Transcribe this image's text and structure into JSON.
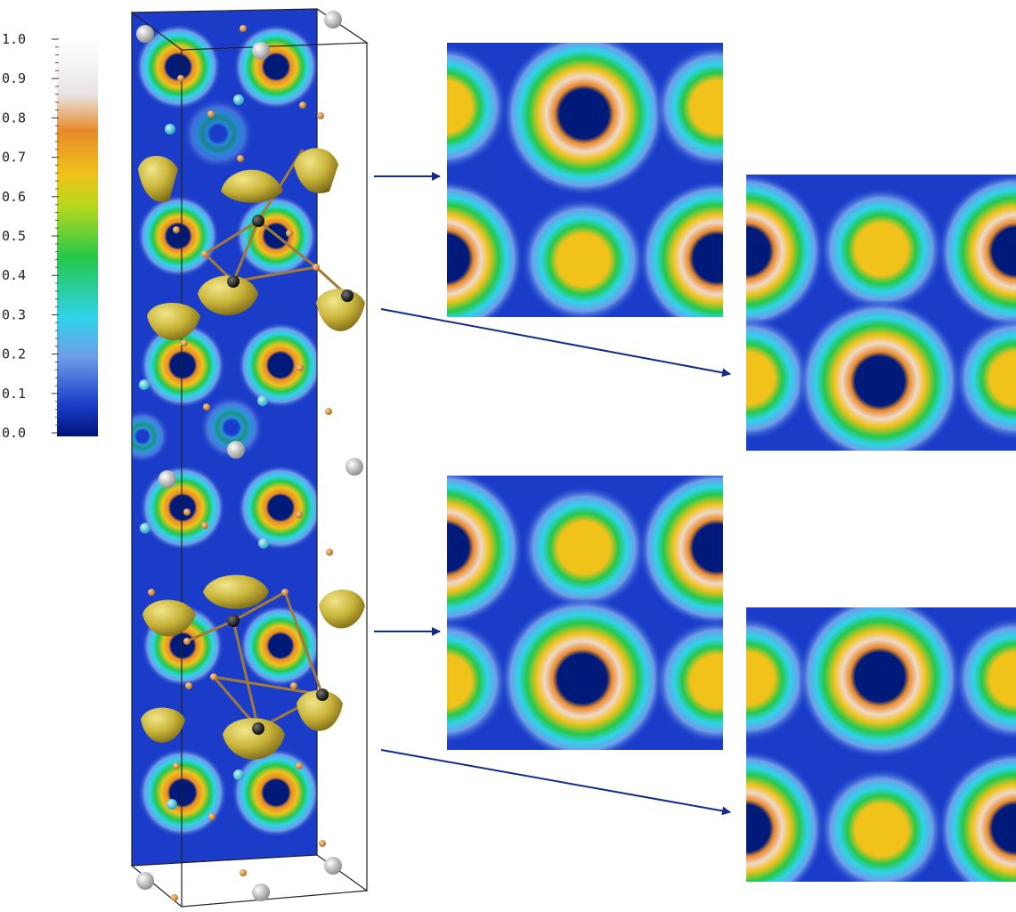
{
  "colorbar": {
    "ticks": [
      "1.0",
      "0.9",
      "0.8",
      "0.7",
      "0.6",
      "0.5",
      "0.4",
      "0.3",
      "0.2",
      "0.1",
      "0.0"
    ],
    "gradient": [
      "#00127a",
      "#1b3ec9",
      "#6f9de8",
      "#2fd3ea",
      "#25c84a",
      "#b7d81c",
      "#f0c21a",
      "#e88a2a",
      "#eeeeee",
      "#ffffff"
    ]
  },
  "colors": {
    "background_blue": "#1a3cc9",
    "hole": "#001a7a",
    "isosurface": "#c9b43a",
    "arrow": "#152a8a",
    "atom_gray": "#b5b5b5",
    "atom_cyan": "#38c8e0",
    "atom_orange": "#d98a2a",
    "atom_black": "#111111"
  }
}
